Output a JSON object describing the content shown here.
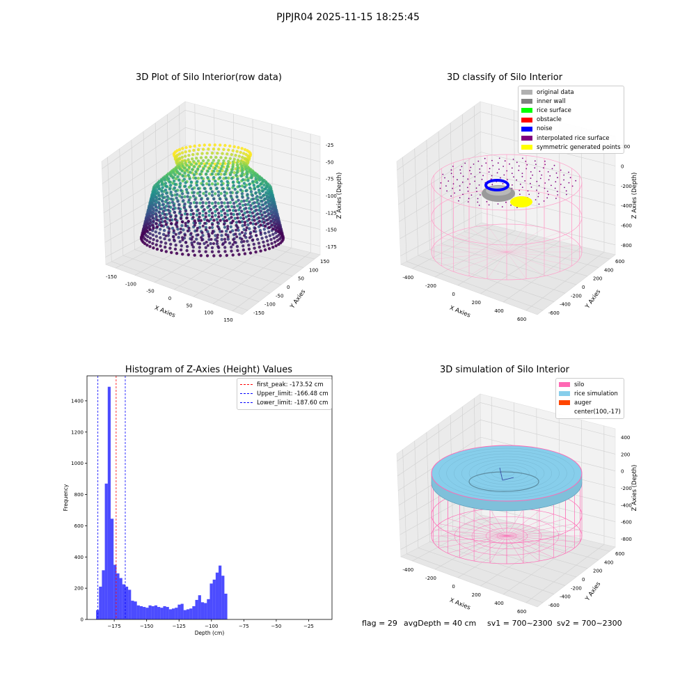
{
  "suptitle": "PJPJR04 2025-11-15 18:25:45",
  "footer": {
    "flag": "flag = 29",
    "avg_depth": "avgDepth = 40 cm",
    "sv1": "sv1 = 700~2300",
    "sv2": "sv2 = 700~2300"
  },
  "chart_data": [
    {
      "type": "scatter",
      "projection": "3d",
      "title": "3D Plot of Silo Interior(row data)",
      "xlabel": "X Axies",
      "ylabel": "Y Axies",
      "zlabel": "Z Axies (Depth)",
      "x_ticks": [
        -150,
        -100,
        -50,
        0,
        50,
        100,
        150
      ],
      "y_ticks": [
        -150,
        -100,
        -50,
        0,
        50,
        100,
        150
      ],
      "z_ticks": [
        -25,
        -50,
        -75,
        -100,
        -125,
        -150,
        -175
      ],
      "colormap": "viridis",
      "grid": true
    },
    {
      "type": "scatter",
      "projection": "3d",
      "title": "3D classify of Silo Interior",
      "xlabel": "X Axies",
      "ylabel": "Y Axies",
      "zlabel": "Z Axies (Depth)",
      "x_ticks": [
        -400,
        -200,
        0,
        200,
        400,
        600
      ],
      "y_ticks": [
        -600,
        -400,
        -200,
        0,
        200,
        400,
        600
      ],
      "z_ticks": [
        200,
        0,
        -200,
        -400,
        -600,
        -800
      ],
      "legend_position": "upper-right",
      "legend": [
        {
          "label": "original data",
          "color": "#b0b0b0"
        },
        {
          "label": "inner wall",
          "color": "#808080"
        },
        {
          "label": "rice surface",
          "color": "#00ff00"
        },
        {
          "label": "obstacle",
          "color": "#ff0000"
        },
        {
          "label": "noise",
          "color": "#0000ff"
        },
        {
          "label": "interpolated rice surface",
          "color": "#800080"
        },
        {
          "label": "symmetric generated points",
          "color": "#ffff00"
        }
      ],
      "grid": true
    },
    {
      "type": "bar",
      "title": "Histogram of Z-Axies (Height) Values",
      "xlabel": "Depth (cm)",
      "ylabel": "Frequency",
      "bar_color": "#0000ff",
      "bin_width": 2.25,
      "x_start": -189,
      "xlim": [
        -196,
        -7
      ],
      "ylim": [
        0,
        1560
      ],
      "x_ticks": [
        -175,
        -150,
        -125,
        -100,
        -75,
        -50,
        -25
      ],
      "y_ticks": [
        0,
        200,
        400,
        600,
        800,
        1000,
        1200,
        1400
      ],
      "values": [
        60,
        210,
        315,
        870,
        1490,
        645,
        350,
        295,
        265,
        225,
        210,
        190,
        120,
        115,
        90,
        85,
        80,
        75,
        90,
        85,
        90,
        80,
        75,
        85,
        80,
        65,
        70,
        75,
        95,
        100,
        60,
        65,
        70,
        85,
        125,
        155,
        110,
        105,
        130,
        230,
        255,
        300,
        345,
        280,
        165
      ],
      "vlines": [
        {
          "label": "first_peak: -173.52 cm",
          "x": -173.52,
          "color": "#ff0000"
        },
        {
          "label": "Upper_limit: -166.48 cm",
          "x": -166.48,
          "color": "#0000ff"
        },
        {
          "label": "Lower_limit: -187.60 cm",
          "x": -187.6,
          "color": "#0000ff"
        }
      ],
      "legend_position": "upper-right"
    },
    {
      "type": "surface",
      "projection": "3d",
      "title": "3D simulation of Silo Interior",
      "xlabel": "X Axies",
      "ylabel": "Y Axies",
      "zlabel": "Z Axies (Depth)",
      "x_ticks": [
        -400,
        -200,
        0,
        200,
        400,
        600
      ],
      "y_ticks": [
        -600,
        -400,
        -200,
        0,
        200,
        400,
        600
      ],
      "z_ticks": [
        400,
        200,
        0,
        -200,
        -400,
        -600,
        -800
      ],
      "legend_position": "upper-right",
      "legend": [
        {
          "label": "silo",
          "color": "#ff69b4"
        },
        {
          "label": "rice simulation",
          "color": "#87ceeb"
        },
        {
          "label": "auger",
          "color": "#ff4500"
        },
        {
          "label": "center(100,-17)",
          "color": ""
        }
      ],
      "grid": true
    }
  ]
}
